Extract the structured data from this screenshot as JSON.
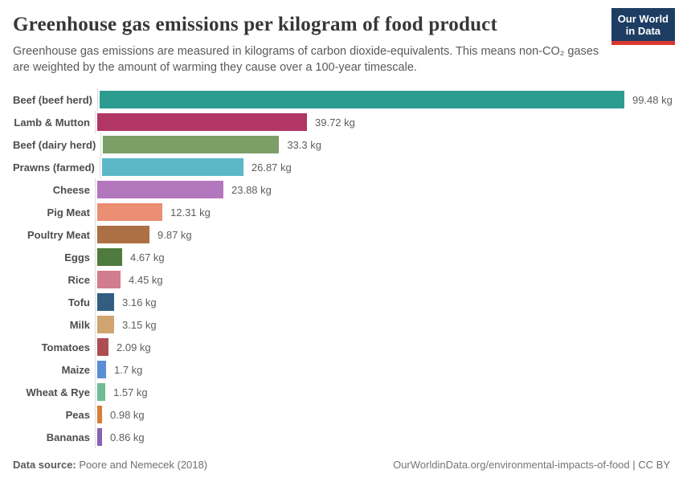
{
  "header": {
    "title": "Greenhouse gas emissions per kilogram of food product",
    "subtitle": "Greenhouse gas emissions are measured in kilograms of carbon dioxide-equivalents. This means non-CO₂ gases are weighted by the amount of warming they cause over a 100-year timescale.",
    "logo": {
      "line1": "Our World",
      "line2": "in Data",
      "bg_color": "#1d3d63",
      "accent_color": "#dc372f"
    }
  },
  "chart_data": {
    "type": "bar",
    "orientation": "horizontal",
    "title": "Greenhouse gas emissions per kilogram of food product",
    "xlabel": "",
    "ylabel": "",
    "unit": "kg CO₂-equivalents per kg",
    "xmax": 99.48,
    "grid": false,
    "legend": "none",
    "categories": [
      "Beef (beef herd)",
      "Lamb & Mutton",
      "Beef (dairy herd)",
      "Prawns (farmed)",
      "Cheese",
      "Pig Meat",
      "Poultry Meat",
      "Eggs",
      "Rice",
      "Tofu",
      "Milk",
      "Tomatoes",
      "Maize",
      "Wheat & Rye",
      "Peas",
      "Bananas"
    ],
    "values": [
      99.48,
      39.72,
      33.3,
      26.87,
      23.88,
      12.31,
      9.87,
      4.67,
      4.45,
      3.16,
      3.15,
      2.09,
      1.7,
      1.57,
      0.98,
      0.86
    ],
    "value_labels": [
      "99.48 kg",
      "39.72 kg",
      "33.3 kg",
      "26.87 kg",
      "23.88 kg",
      "12.31 kg",
      "9.87 kg",
      "4.67 kg",
      "4.45 kg",
      "3.16 kg",
      "3.15 kg",
      "2.09 kg",
      "1.7 kg",
      "1.57 kg",
      "0.98 kg",
      "0.86 kg"
    ],
    "colors": [
      "#2c9c91",
      "#b23665",
      "#7c9e67",
      "#5cb8c6",
      "#b377bd",
      "#ea8e74",
      "#ad6f44",
      "#4f7b3f",
      "#d27d8f",
      "#315d80",
      "#cfa46f",
      "#ac4e52",
      "#5a8fd6",
      "#6fbc92",
      "#d67e36",
      "#8761b2"
    ]
  },
  "footer": {
    "source_label": "Data source:",
    "source_value": " Poore and Nemecek (2018)",
    "link": "OurWorldinData.org/environmental-impacts-of-food",
    "separator": " | ",
    "license": "CC BY"
  }
}
